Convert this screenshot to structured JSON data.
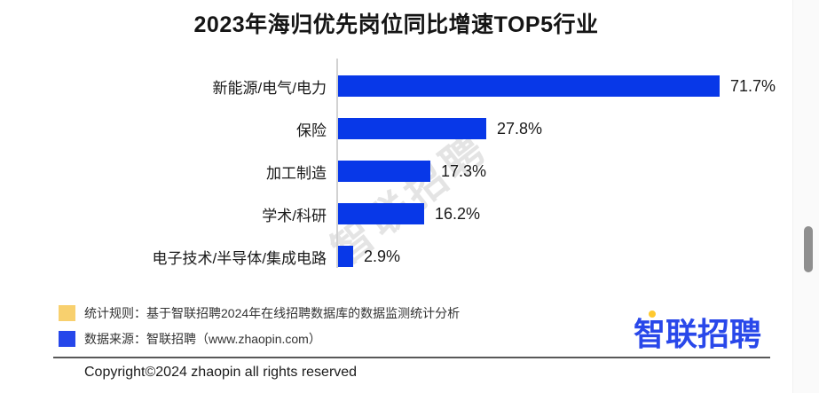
{
  "title": "2023年海归优先岗位同比增速TOP5行业",
  "chart_data": {
    "type": "bar",
    "orientation": "horizontal",
    "title": "2023年海归优先岗位同比增速TOP5行业",
    "categories": [
      "新能源/电气/电力",
      "保险",
      "加工制造",
      "学术/科研",
      "电子技术/半导体/集成电路"
    ],
    "values": [
      71.7,
      27.8,
      17.3,
      16.2,
      2.9
    ],
    "value_labels": [
      "71.7%",
      "27.8%",
      "17.3%",
      "16.2%",
      "2.9%"
    ],
    "xlim": [
      0,
      75
    ],
    "grid": false,
    "legend_position": "none",
    "bar_color": "#0838e8"
  },
  "watermark": "智联招聘",
  "legend": {
    "items": [
      {
        "color": "#f8d06e",
        "label": "统计规则：基于智联招聘2024年在线招聘数据库的数据监测统计分析"
      },
      {
        "color": "#2647ea",
        "label": "数据来源：智联招聘（www.zhaopin.com）"
      }
    ]
  },
  "logo": {
    "text": "智联招聘",
    "color": "#2948ea",
    "ring_color": "#ffc92e"
  },
  "footer": {
    "copyright": "Copyright©2024 zhaopin all rights reserved"
  },
  "colors": {
    "bar": "#0838e8",
    "axis": "#d2d2d2",
    "title_text": "#151515",
    "watermark": "#c4c4c4",
    "scrollbar_thumb": "#8f8f8f"
  }
}
